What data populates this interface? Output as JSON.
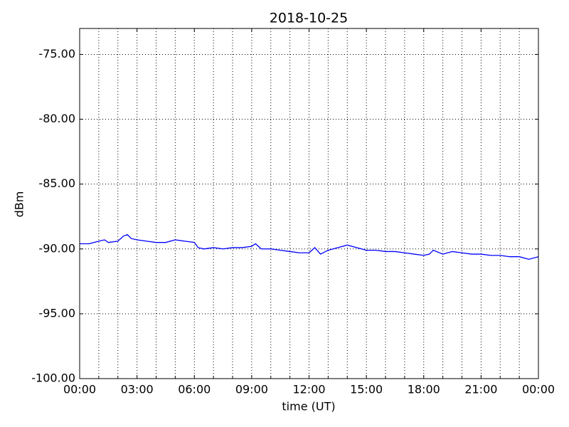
{
  "chart_data": {
    "type": "line",
    "title": "2018-10-25",
    "xlabel": "time (UT)",
    "ylabel": "dBm",
    "x": [
      0,
      0.5,
      1,
      1.3,
      1.5,
      2,
      2.3,
      2.5,
      2.7,
      3,
      3.5,
      4,
      4.5,
      5,
      5.5,
      6,
      6.2,
      6.5,
      7,
      7.5,
      8,
      8.5,
      9,
      9.2,
      9.5,
      10,
      10.5,
      11,
      11.5,
      12,
      12.3,
      12.6,
      13,
      13.5,
      14,
      14.5,
      15,
      15.5,
      16,
      16.5,
      17,
      17.5,
      18,
      18.3,
      18.5,
      19,
      19.5,
      20,
      20.5,
      21,
      21.5,
      22,
      22.5,
      23,
      23.5,
      24
    ],
    "series": [
      {
        "color": "#0000ff",
        "values": [
          -89.6,
          -89.6,
          -89.4,
          -89.3,
          -89.5,
          -89.4,
          -89.0,
          -88.9,
          -89.2,
          -89.3,
          -89.4,
          -89.5,
          -89.5,
          -89.3,
          -89.4,
          -89.5,
          -89.9,
          -90.0,
          -89.9,
          -90.0,
          -89.9,
          -89.9,
          -89.8,
          -89.6,
          -90.0,
          -90.0,
          -90.1,
          -90.2,
          -90.3,
          -90.3,
          -89.9,
          -90.4,
          -90.1,
          -89.9,
          -89.7,
          -89.9,
          -90.1,
          -90.1,
          -90.2,
          -90.2,
          -90.3,
          -90.4,
          -90.5,
          -90.4,
          -90.1,
          -90.4,
          -90.2,
          -90.3,
          -90.4,
          -90.4,
          -90.5,
          -90.5,
          -90.6,
          -90.6,
          -90.8,
          -90.6
        ]
      }
    ],
    "xlim": [
      0,
      24
    ],
    "xticks": [
      {
        "value": 0,
        "label": "00:00"
      },
      {
        "value": 3,
        "label": "03:00"
      },
      {
        "value": 6,
        "label": "06:00"
      },
      {
        "value": 9,
        "label": "09:00"
      },
      {
        "value": 12,
        "label": "12:00"
      },
      {
        "value": 15,
        "label": "15:00"
      },
      {
        "value": 18,
        "label": "18:00"
      },
      {
        "value": 21,
        "label": "21:00"
      },
      {
        "value": 24,
        "label": "00:00"
      }
    ],
    "xminorticks": [
      1,
      2,
      4,
      5,
      7,
      8,
      10,
      11,
      13,
      14,
      16,
      17,
      19,
      20,
      22,
      23
    ],
    "ylim": [
      -100,
      -73
    ],
    "yticks": [
      {
        "value": -100,
        "label": "-100.00"
      },
      {
        "value": -95,
        "label": "-95.00"
      },
      {
        "value": -90,
        "label": "-90.00"
      },
      {
        "value": -85,
        "label": "-85.00"
      },
      {
        "value": -80,
        "label": "-80.00"
      },
      {
        "value": -75,
        "label": "-75.00"
      }
    ],
    "grid": true
  }
}
